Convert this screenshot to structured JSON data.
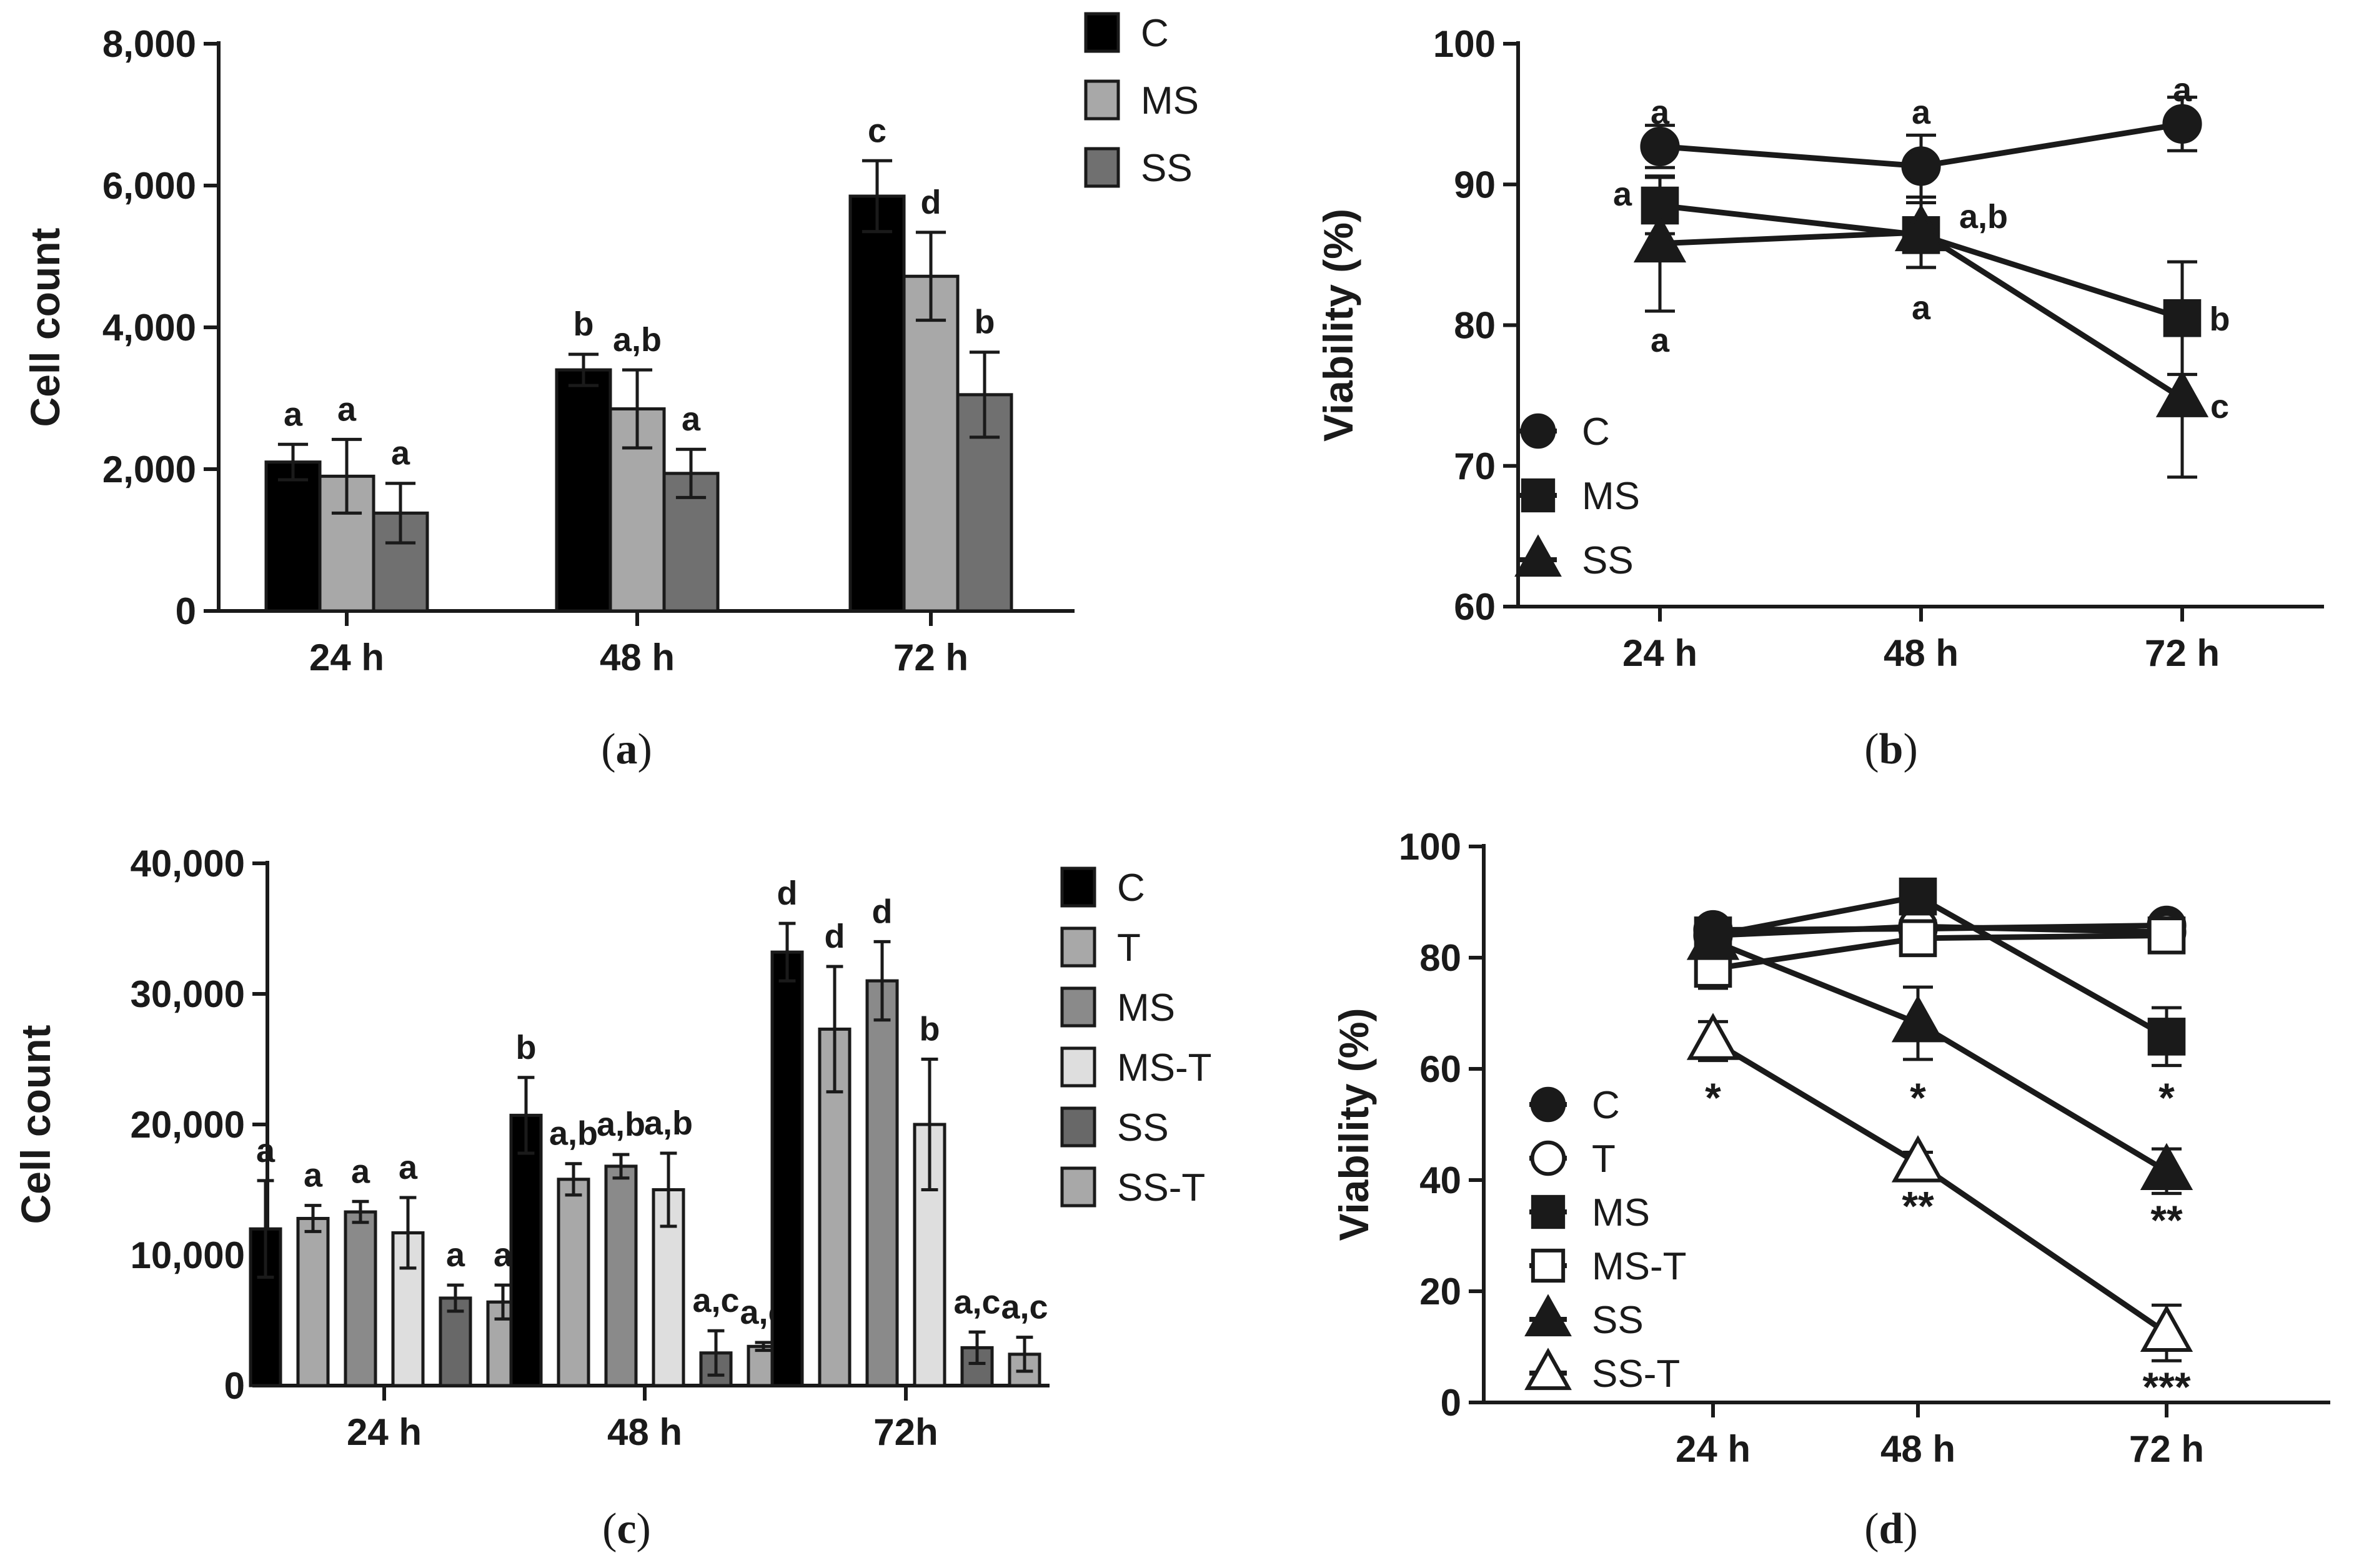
{
  "chart_data": [
    {
      "id": "a",
      "type": "bar",
      "panel_label": "a",
      "ylabel": "Cell count",
      "ylim": [
        0,
        8000
      ],
      "yticks": [
        0,
        2000,
        4000,
        6000,
        8000
      ],
      "ytick_labels": [
        "0",
        "2,000",
        "4,000",
        "6,000",
        "8,000"
      ],
      "categories": [
        "24 h",
        "48 h",
        "72 h"
      ],
      "legend_position": "top-right",
      "series": [
        {
          "name": "C",
          "color": "#000000",
          "values": [
            2100,
            3400,
            5850
          ],
          "errors": [
            250,
            220,
            500
          ],
          "labels": [
            "a",
            "b",
            "c"
          ]
        },
        {
          "name": "MS",
          "color": "#a8a8a8",
          "values": [
            1900,
            2850,
            4720
          ],
          "errors": [
            520,
            550,
            620
          ],
          "labels": [
            "a",
            "a,b",
            "d"
          ]
        },
        {
          "name": "SS",
          "color": "#707070",
          "values": [
            1380,
            1940,
            3050
          ],
          "errors": [
            420,
            340,
            600
          ],
          "labels": [
            "a",
            "a",
            "b"
          ]
        }
      ]
    },
    {
      "id": "b",
      "type": "line",
      "panel_label": "b",
      "ylabel": "Viability (%)",
      "ylim": [
        60,
        100
      ],
      "yticks": [
        60,
        70,
        80,
        90,
        100
      ],
      "ytick_labels": [
        "60",
        "70",
        "80",
        "90",
        "100"
      ],
      "categories": [
        "24 h",
        "48 h",
        "72 h"
      ],
      "legend_position": "bottom-left",
      "series": [
        {
          "name": "C",
          "marker": "circle",
          "filled": true,
          "values": [
            92.7,
            91.3,
            94.3
          ],
          "errors": [
            1.5,
            2.2,
            1.9
          ]
        },
        {
          "name": "MS",
          "marker": "square",
          "filled": true,
          "values": [
            88.5,
            86.4,
            80.5
          ],
          "errors": [
            2.0,
            2.3,
            4.0
          ]
        },
        {
          "name": "SS",
          "marker": "triangle",
          "filled": true,
          "values": [
            85.8,
            86.6,
            74.8
          ],
          "errors": [
            4.8,
            2.5,
            5.6
          ]
        }
      ],
      "annotations": [
        {
          "x": 0,
          "y": 95.2,
          "text": "a"
        },
        {
          "x": 0,
          "y": 89.4,
          "text": "a"
        },
        {
          "x": 0,
          "y": 79.0,
          "text": "a"
        },
        {
          "x": 1,
          "y": 95.2,
          "text": "a"
        },
        {
          "x": 1,
          "y": 87.8,
          "text": "a,b"
        },
        {
          "x": 1,
          "y": 81.3,
          "text": "a"
        },
        {
          "x": 2,
          "y": 96.8,
          "text": "a"
        },
        {
          "x": 2,
          "y": 80.5,
          "text": "b"
        },
        {
          "x": 2,
          "y": 74.3,
          "text": "c"
        }
      ]
    },
    {
      "id": "c",
      "type": "bar",
      "panel_label": "c",
      "ylabel": "Cell count",
      "ylim": [
        0,
        40000
      ],
      "yticks": [
        0,
        10000,
        20000,
        30000,
        40000
      ],
      "ytick_labels": [
        "0",
        "10,000",
        "20,000",
        "30,000",
        "40,000"
      ],
      "categories": [
        "24 h",
        "48 h",
        "72h"
      ],
      "legend_position": "top-right",
      "series": [
        {
          "name": "C",
          "color": "#000000",
          "values": [
            12000,
            20700,
            33200
          ],
          "errors": [
            3700,
            2900,
            2200
          ],
          "labels": [
            "a",
            "b",
            "d"
          ]
        },
        {
          "name": "T",
          "color": "#a8a8a8",
          "values": [
            12800,
            15800,
            27300
          ],
          "errors": [
            1000,
            1200,
            4800
          ],
          "labels": [
            "a",
            "a,b",
            "d"
          ]
        },
        {
          "name": "MS",
          "color": "#8a8a8a",
          "values": [
            13300,
            16800,
            31000
          ],
          "errors": [
            800,
            900,
            3000
          ],
          "labels": [
            "a",
            "a,b",
            "d"
          ]
        },
        {
          "name": "MS-T",
          "color": "#dedede",
          "values": [
            11700,
            15000,
            20000
          ],
          "errors": [
            2700,
            2800,
            5000
          ],
          "labels": [
            "a",
            "a,b",
            "b"
          ]
        },
        {
          "name": "SS",
          "color": "#686868",
          "values": [
            6700,
            2500,
            2900
          ],
          "errors": [
            1000,
            1700,
            1200
          ],
          "labels": [
            "a",
            "a,c",
            "a,c"
          ]
        },
        {
          "name": "SS-T",
          "color": "#a8a8a8",
          "values": [
            6400,
            3000,
            2400
          ],
          "errors": [
            1300,
            300,
            1300
          ],
          "labels": [
            "a",
            "a,c",
            "a,c"
          ]
        }
      ]
    },
    {
      "id": "d",
      "type": "line",
      "panel_label": "d",
      "ylabel": "Viability (%)",
      "ylim": [
        0,
        100
      ],
      "yticks": [
        0,
        20,
        40,
        60,
        80,
        100
      ],
      "ytick_labels": [
        "0",
        "20",
        "40",
        "60",
        "80",
        "100"
      ],
      "categories": [
        "24 h",
        "48 h",
        "72 h"
      ],
      "legend_position": "bottom-left",
      "series": [
        {
          "name": "C",
          "marker": "circle",
          "filled": true,
          "values": [
            85.0,
            85.2,
            85.8
          ],
          "errors": [
            2.0,
            2.0,
            1.0
          ]
        },
        {
          "name": "T",
          "marker": "circle",
          "filled": false,
          "values": [
            84.0,
            85.6,
            84.6
          ],
          "errors": [
            2.0,
            1.5,
            1.5
          ]
        },
        {
          "name": "MS",
          "marker": "square",
          "filled": true,
          "values": [
            84.0,
            91.0,
            65.8
          ],
          "errors": [
            2.0,
            1.5,
            5.2
          ]
        },
        {
          "name": "MS-T",
          "marker": "square",
          "filled": false,
          "values": [
            78.0,
            83.5,
            84.0
          ],
          "errors": [
            3.5,
            2.0,
            1.5
          ]
        },
        {
          "name": "SS",
          "marker": "triangle",
          "filled": true,
          "values": [
            83.0,
            68.2,
            41.6
          ],
          "errors": [
            2.0,
            6.5,
            4.0
          ]
        },
        {
          "name": "SS-T",
          "marker": "triangle",
          "filled": false,
          "values": [
            65.0,
            43.0,
            12.5
          ],
          "errors": [
            3.5,
            2.0,
            5.0
          ]
        }
      ],
      "annotations": [
        {
          "x": 0,
          "y": 54.5,
          "text": "*"
        },
        {
          "x": 1,
          "y": 54.5,
          "text": "*"
        },
        {
          "x": 2,
          "y": 54.5,
          "text": "*"
        },
        {
          "x": 1,
          "y": 35.0,
          "text": "**"
        },
        {
          "x": 2,
          "y": 32.5,
          "text": "**"
        },
        {
          "x": 2,
          "y": 2.5,
          "text": "***"
        }
      ]
    }
  ]
}
